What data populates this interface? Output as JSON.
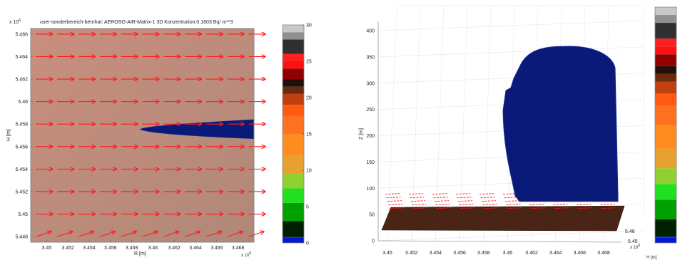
{
  "chart_data": [
    {
      "type": "heatmap",
      "title": "user-sonderbereich-bernhat: AEROSO-AIR-Matrix-1 3D Konzentration:0.1603 Bq/ m**3",
      "xlabel": "R [m]",
      "ylabel": "H [m]",
      "x_exponent": "x 10",
      "x_exponent_power": "5",
      "y_exponent": "x 10",
      "y_exponent_power": "6",
      "xlim": [
        3.4485,
        3.4695
      ],
      "ylim": [
        5.4475,
        5.4665
      ],
      "x_ticks": [
        "3.45",
        "3.452",
        "3.454",
        "3.456",
        "3.458",
        "3.46",
        "3.462",
        "3.464",
        "3.466",
        "3.468"
      ],
      "y_ticks": [
        "5.448",
        "5.45",
        "5.452",
        "5.454",
        "5.456",
        "5.458",
        "5.46",
        "5.462",
        "5.464",
        "5.466"
      ],
      "wind_vectors": {
        "x": [
          3.449,
          3.451,
          3.453,
          3.455,
          3.457,
          3.459,
          3.461,
          3.463,
          3.465,
          3.467,
          3.469
        ],
        "y": [
          5.448,
          5.45,
          5.452,
          5.454,
          5.456,
          5.458,
          5.46,
          5.462,
          5.464,
          5.466
        ],
        "direction": "east",
        "bottom_row_direction": "northeast"
      },
      "plume": {
        "color": "#0a1a78",
        "x_start": 3.4588,
        "x_end": 3.4695,
        "y_center": 5.45755,
        "half_width_end": 0.00085
      },
      "background_color": "#bf8f82"
    },
    {
      "type": "bar",
      "name": "colorbar",
      "ylim": [
        0,
        30
      ],
      "ticks": [
        "0",
        "5",
        "10",
        "15",
        "20",
        "25",
        "30"
      ],
      "stops": [
        {
          "v": 0,
          "c": "#0018d8"
        },
        {
          "v": 0.7,
          "c": "#0018d8"
        },
        {
          "v": 0.8,
          "c": "#002000"
        },
        {
          "v": 3,
          "c": "#00a000"
        },
        {
          "v": 5.5,
          "c": "#20e020"
        },
        {
          "v": 7.5,
          "c": "#90d030"
        },
        {
          "v": 9.5,
          "c": "#e8a030"
        },
        {
          "v": 12,
          "c": "#ff8c20"
        },
        {
          "v": 15,
          "c": "#ff7020"
        },
        {
          "v": 17.5,
          "c": "#ff5a10"
        },
        {
          "v": 19,
          "c": "#c04010"
        },
        {
          "v": 20.5,
          "c": "#6a2a10"
        },
        {
          "v": 21.5,
          "c": "#201008"
        },
        {
          "v": 22.5,
          "c": "#900000"
        },
        {
          "v": 24,
          "c": "#ff1010"
        },
        {
          "v": 25,
          "c": "#ff2020"
        },
        {
          "v": 26,
          "c": "#303030"
        },
        {
          "v": 28,
          "c": "#909090"
        },
        {
          "v": 29,
          "c": "#c8c8c8"
        },
        {
          "v": 30,
          "c": "#e8e8e8"
        }
      ]
    },
    {
      "type": "scatter",
      "name": "3d-view",
      "zlabel": "Z [m]",
      "xlabel": "",
      "ylabel": "H [m]",
      "x_exponent": "x 10",
      "x_exponent_power": "6",
      "zlim": [
        0,
        400
      ],
      "z_ticks": [
        "0",
        "50",
        "100",
        "150",
        "200",
        "250",
        "300",
        "350",
        "400"
      ],
      "x_ticks": [
        "3.45",
        "3.452",
        "3.454",
        "3.456",
        "3.458",
        "3.46",
        "3.462",
        "3.464",
        "3.466",
        "3.468"
      ],
      "y_ticks": [
        "5.45",
        "5.46"
      ],
      "plume_color": "#0a1a78",
      "ground_color": "#4a2414",
      "wind_vectors_z": 75,
      "plume_top_z": 370,
      "plume_bottom_z": 75
    }
  ]
}
